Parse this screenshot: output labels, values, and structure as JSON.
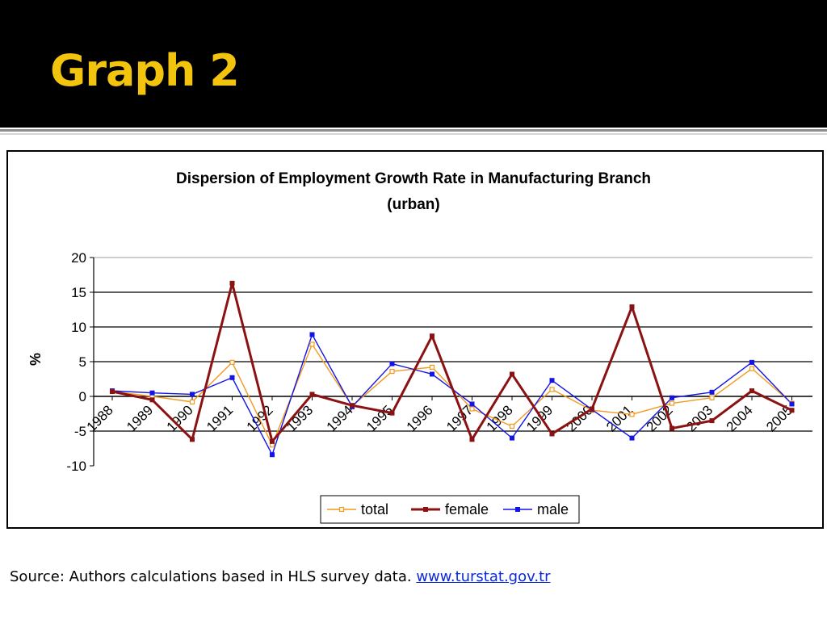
{
  "slide": {
    "title": "Graph 2"
  },
  "source": {
    "text": "Source: Authors calculations based in HLS survey data. ",
    "link_text": "www.turstat.gov.tr"
  },
  "colors": {
    "header_bg": "#000000",
    "title": "#f2c40d",
    "total": "#f39a1e",
    "female": "#8b1212",
    "male": "#1414e6",
    "link": "#0b2ad6"
  },
  "chart_data": {
    "type": "line",
    "title_lines": [
      "Dispersion of Employment Growth Rate in Manufacturing Branch",
      "(urban)"
    ],
    "ylabel": "%",
    "xlabel": "",
    "ylim": [
      -10,
      20
    ],
    "yticks": [
      20,
      15,
      10,
      5,
      0,
      -5,
      -10
    ],
    "grid": "horizontal",
    "legend": "bottom-center",
    "categories": [
      "1988",
      "1989",
      "1990",
      "1991",
      "1992",
      "1993",
      "1994",
      "1995",
      "1996",
      "1997",
      "1998",
      "1999",
      "2000",
      "2001",
      "2002",
      "2003",
      "2004",
      "2005"
    ],
    "series": [
      {
        "name": "total",
        "color": "#f39a1e",
        "marker": "hollow-square",
        "values": [
          0.7,
          0.0,
          -0.8,
          4.9,
          -7.0,
          7.5,
          -1.4,
          3.6,
          4.2,
          -1.8,
          -4.3,
          1.0,
          -2.0,
          -2.6,
          -1.0,
          -0.2,
          4.0,
          -1.0
        ]
      },
      {
        "name": "female",
        "color": "#8b1212",
        "marker": "filled-square",
        "values": [
          0.7,
          -0.5,
          -6.2,
          16.3,
          -6.5,
          0.3,
          -1.3,
          -2.4,
          8.7,
          -6.2,
          3.2,
          -5.4,
          -1.8,
          12.9,
          -4.6,
          -3.5,
          0.8,
          -2.0
        ]
      },
      {
        "name": "male",
        "color": "#1414e6",
        "marker": "filled-square",
        "values": [
          0.8,
          0.5,
          0.3,
          2.7,
          -8.4,
          8.9,
          -1.5,
          4.7,
          3.2,
          -1.1,
          -6.0,
          2.3,
          -1.9,
          -6.0,
          -0.2,
          0.6,
          4.9,
          -1.1
        ]
      }
    ]
  }
}
